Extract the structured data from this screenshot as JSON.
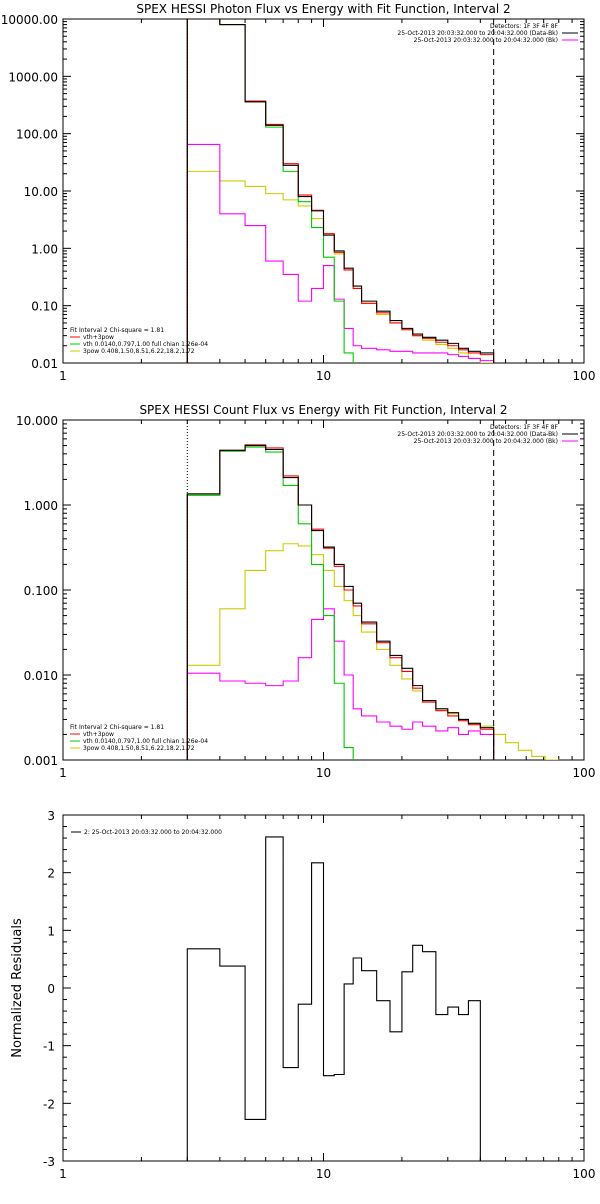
{
  "chart_data": [
    {
      "type": "line",
      "title": "SPEX HESSI Photon Flux vs Energy with Fit Function, Interval 2",
      "xscale": "log",
      "yscale": "log",
      "xlim": [
        1,
        100
      ],
      "ylim": [
        0.01,
        10000
      ],
      "x_ticks": [
        "1",
        "10",
        "100"
      ],
      "y_ticks": [
        "0.01",
        "0.10",
        "1.00",
        "10.00",
        "100.00",
        "1000.00",
        "10000.00"
      ],
      "vlines": [
        {
          "x": 3,
          "style": "dotted",
          "color": "#000000"
        },
        {
          "x": 45,
          "style": "dashed",
          "color": "#000000"
        }
      ],
      "legend_top_right": [
        {
          "label": "Detectors: 1F 3F 4F 8F",
          "color": "#000000",
          "line": false
        },
        {
          "label": "25-Oct-2013 20:03:32.000 to 20:04:32.000 (Data-Bk)",
          "color": "#000000",
          "line": true
        },
        {
          "label": "25-Oct-2013 20:03:32.000 to 20:04:32.000 (Bk)",
          "color": "#ff00ff",
          "line": true
        }
      ],
      "legend_bottom_left": [
        {
          "label": "Fit Interval 2   Chi-square = 1.81",
          "color": "#000000",
          "line": false
        },
        {
          "label": "vth+3pow",
          "color": "#ff0000",
          "line": true
        },
        {
          "label": "vth 0.0140,0.797,1.00  full chian 1.26e-04",
          "color": "#00cc00",
          "line": true
        },
        {
          "label": "3pow 0.408,1.50,8.51,6.22,18.2,1.72",
          "color": "#cccc00",
          "line": true
        }
      ],
      "edges": [
        3,
        4,
        5,
        6,
        7,
        8,
        9,
        10,
        11,
        12,
        13,
        14,
        16,
        18,
        20,
        22,
        24,
        27,
        30,
        33,
        36,
        40,
        45,
        50,
        56
      ],
      "series": [
        {
          "name": "Data-Bk",
          "color": "#000000",
          "values": [
            10000,
            8000,
            360,
            140,
            28,
            8,
            4.5,
            1.7,
            0.9,
            0.45,
            0.22,
            0.12,
            0.08,
            0.055,
            0.04,
            0.032,
            0.028,
            0.025,
            0.022,
            0.018,
            0.016,
            0.015
          ]
        },
        {
          "name": "vth+3pow",
          "color": "#ff0000",
          "values": [
            10000,
            8000,
            370,
            145,
            30,
            8.5,
            4.6,
            1.8,
            0.85,
            0.42,
            0.2,
            0.11,
            0.075,
            0.05,
            0.038,
            0.03,
            0.027,
            0.023,
            0.02,
            0.017,
            0.015,
            0.014
          ]
        },
        {
          "name": "vth",
          "color": "#00cc00",
          "values": [
            10000,
            8000,
            360,
            130,
            22,
            6.5,
            2.3,
            0.7,
            0.12,
            0.015,
            0.001
          ]
        },
        {
          "name": "3pow",
          "color": "#cccc00",
          "values": [
            22,
            15,
            12,
            9,
            7,
            5.5,
            3.3,
            1.7,
            0.8,
            0.42,
            0.2,
            0.11,
            0.07,
            0.05,
            0.038,
            0.03,
            0.025,
            0.021,
            0.018,
            0.015,
            0.012,
            0.01,
            0.008,
            0.006
          ]
        },
        {
          "name": "Bk",
          "color": "#ff00ff",
          "values": [
            65,
            4,
            2.5,
            0.6,
            0.35,
            0.12,
            0.2,
            0.5,
            0.13,
            0.04,
            0.02,
            0.018,
            0.017,
            0.016,
            0.016,
            0.015,
            0.015,
            0.015,
            0.014,
            0.013,
            0.012,
            0.011
          ]
        }
      ]
    },
    {
      "type": "line",
      "title": "SPEX HESSI Count Flux vs Energy with Fit Function, Interval 2",
      "xscale": "log",
      "yscale": "log",
      "xlim": [
        1,
        100
      ],
      "ylim": [
        0.001,
        10
      ],
      "x_ticks": [
        "1",
        "10",
        "100"
      ],
      "y_ticks": [
        "0.001",
        "0.010",
        "0.100",
        "1.000",
        "10.000"
      ],
      "vlines": [
        {
          "x": 3,
          "style": "dotted",
          "color": "#000000"
        },
        {
          "x": 45,
          "style": "dashed",
          "color": "#000000"
        }
      ],
      "legend_top_right": [
        {
          "label": "Detectors: 1F 3F 4F 8F",
          "color": "#000000",
          "line": false
        },
        {
          "label": "25-Oct-2013 20:03:32.000 to 20:04:32.000 (Data-Bk)",
          "color": "#000000",
          "line": true
        },
        {
          "label": "25-Oct-2013 20:03:32.000 to 20:04:32.000 (Bk)",
          "color": "#ff00ff",
          "line": true
        }
      ],
      "legend_bottom_left": [
        {
          "label": "Fit Interval 2   Chi-square = 1.81",
          "color": "#000000",
          "line": false
        },
        {
          "label": "vth+3pow",
          "color": "#ff0000",
          "line": true
        },
        {
          "label": "vth 0.0140,0.797,1.00  full chian 1.26e-04",
          "color": "#00cc00",
          "line": true
        },
        {
          "label": "3pow 0.408,1.50,8.51,6.22,18.2,1.72",
          "color": "#cccc00",
          "line": true
        }
      ],
      "edges": [
        3,
        4,
        5,
        6,
        7,
        8,
        9,
        10,
        11,
        12,
        13,
        14,
        16,
        18,
        20,
        22,
        24,
        27,
        30,
        33,
        36,
        40,
        45,
        50,
        56,
        63,
        71,
        80,
        90
      ],
      "series": [
        {
          "name": "Data-Bk",
          "color": "#000000",
          "values": [
            1.35,
            4.4,
            5.0,
            4.5,
            2.1,
            1.0,
            0.5,
            0.32,
            0.2,
            0.11,
            0.07,
            0.042,
            0.025,
            0.017,
            0.012,
            0.0075,
            0.005,
            0.004,
            0.0036,
            0.003,
            0.0027,
            0.0024
          ]
        },
        {
          "name": "vth+3pow",
          "color": "#ff0000",
          "values": [
            1.35,
            4.4,
            5.1,
            4.7,
            2.2,
            1.0,
            0.52,
            0.31,
            0.19,
            0.1,
            0.065,
            0.04,
            0.024,
            0.016,
            0.011,
            0.007,
            0.0048,
            0.0038,
            0.0033,
            0.0029,
            0.0026,
            0.0023
          ]
        },
        {
          "name": "vth",
          "color": "#00cc00",
          "values": [
            1.3,
            4.3,
            4.8,
            4.2,
            1.7,
            0.6,
            0.2,
            0.05,
            0.008,
            0.0014,
            0.0005
          ]
        },
        {
          "name": "3pow",
          "color": "#cccc00",
          "values": [
            0.013,
            0.06,
            0.17,
            0.29,
            0.35,
            0.33,
            0.26,
            0.17,
            0.11,
            0.075,
            0.05,
            0.032,
            0.02,
            0.013,
            0.009,
            0.0065,
            0.005,
            0.004,
            0.0035,
            0.003,
            0.0027,
            0.0025,
            0.002,
            0.0016,
            0.0013,
            0.0011,
            0.001,
            0.0009
          ]
        },
        {
          "name": "Bk",
          "color": "#ff00ff",
          "values": [
            0.0105,
            0.0085,
            0.008,
            0.0075,
            0.0085,
            0.016,
            0.045,
            0.06,
            0.025,
            0.01,
            0.004,
            0.0033,
            0.0028,
            0.0025,
            0.0023,
            0.0028,
            0.0025,
            0.0022,
            0.0024,
            0.002,
            0.0022,
            0.002
          ]
        }
      ]
    },
    {
      "type": "line",
      "title": "",
      "ylabel": "Normalized Residuals",
      "xscale": "log",
      "yscale": "linear",
      "xlim": [
        1,
        100
      ],
      "ylim": [
        -3,
        3
      ],
      "x_ticks": [
        "1",
        "10",
        "100"
      ],
      "y_ticks": [
        "-3",
        "-2",
        "-1",
        "0",
        "1",
        "2",
        "3"
      ],
      "legend_top_left": [
        {
          "label": "2: 25-Oct-2013 20:03:32.000 to 20:04:32.000",
          "color": "#000000",
          "line": true
        }
      ],
      "edges": [
        3,
        4,
        5,
        6,
        7,
        8,
        9,
        10,
        11,
        12,
        13,
        14,
        16,
        18,
        20,
        22,
        24,
        27,
        30,
        33,
        36,
        40,
        45
      ],
      "series": [
        {
          "name": "2: 25-Oct-2013 20:03:32.000 to 20:04:32.000",
          "color": "#000000",
          "values": [
            0.68,
            0.38,
            -2.28,
            2.62,
            -1.38,
            -0.28,
            2.17,
            -1.52,
            -1.5,
            0.07,
            0.52,
            0.3,
            -0.22,
            -0.76,
            0.28,
            0.74,
            0.63,
            -0.46,
            -0.33,
            -0.46,
            -0.22
          ]
        }
      ]
    }
  ]
}
